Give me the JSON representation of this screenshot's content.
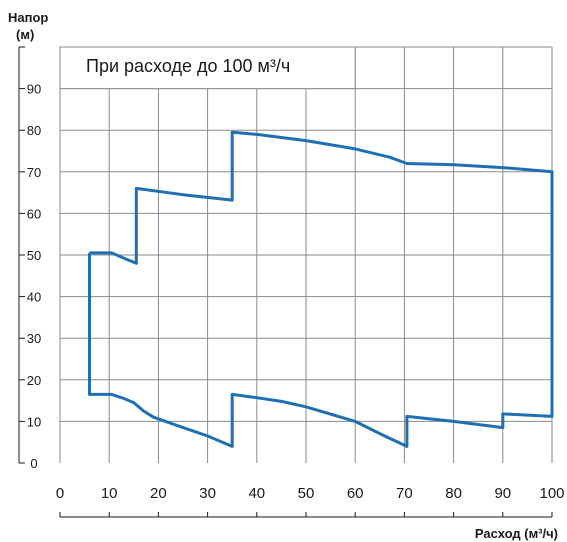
{
  "chart_data": {
    "type": "area",
    "title": "При расходе до 100 м³/ч",
    "ylabel_line1": "Напор",
    "ylabel_line2": "(м)",
    "xlabel": "Расход (м³/ч)",
    "xlim": [
      0,
      100
    ],
    "ylim": [
      0,
      100
    ],
    "xticks": [
      0,
      10,
      20,
      30,
      40,
      50,
      60,
      70,
      80,
      90,
      100
    ],
    "yticks": [
      0,
      10,
      20,
      30,
      40,
      50,
      60,
      70,
      80,
      90
    ],
    "grid": true,
    "line_color": "#1f6fb2",
    "grid_color": "#8a8a8a",
    "series": [
      {
        "points": [
          [
            6,
            50.5
          ],
          [
            10.5,
            50.5
          ],
          [
            13.5,
            49
          ],
          [
            15.5,
            48
          ],
          [
            15.5,
            66
          ],
          [
            25,
            64.5
          ],
          [
            35,
            63.2
          ],
          [
            35,
            79.5
          ],
          [
            40,
            79
          ],
          [
            50,
            77.5
          ],
          [
            60,
            75.5
          ],
          [
            67,
            73.5
          ],
          [
            70.5,
            72
          ],
          [
            80,
            71.7
          ],
          [
            90,
            71
          ],
          [
            100,
            70
          ],
          [
            100,
            11.2
          ],
          [
            90,
            11.8
          ],
          [
            90,
            8.5
          ],
          [
            80,
            10
          ],
          [
            70.5,
            11.2
          ],
          [
            70.5,
            4
          ],
          [
            66,
            6.5
          ],
          [
            60,
            10
          ],
          [
            50,
            13.5
          ],
          [
            45,
            14.8
          ],
          [
            40,
            15.7
          ],
          [
            35,
            16.5
          ],
          [
            35,
            4
          ],
          [
            30,
            6.5
          ],
          [
            25,
            8.5
          ],
          [
            19,
            11
          ],
          [
            17,
            12.5
          ],
          [
            15,
            14.5
          ],
          [
            13,
            15.5
          ],
          [
            10.5,
            16.5
          ],
          [
            6,
            16.5
          ],
          [
            6,
            50.5
          ]
        ]
      }
    ]
  }
}
